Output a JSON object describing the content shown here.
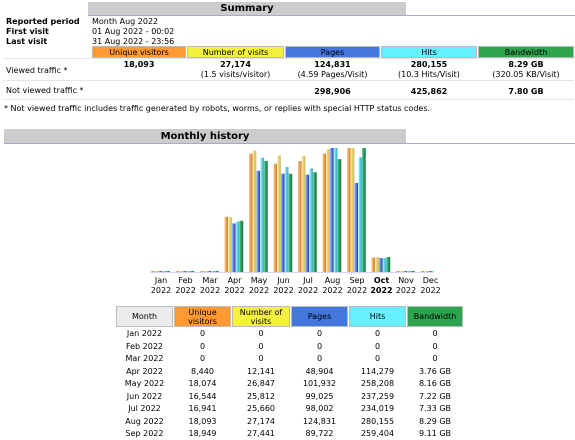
{
  "summary": {
    "title": "Summary",
    "reported_period_label": "Reported period",
    "reported_period": "Month Aug 2022",
    "first_visit_label": "First visit",
    "first_visit": "01 Aug 2022 - 00:02",
    "last_visit_label": "Last visit",
    "last_visit": "31 Aug 2022 - 23:56",
    "headers": [
      "Unique visitors",
      "Number of visits",
      "Pages",
      "Hits",
      "Bandwidth"
    ],
    "viewed_label": "Viewed traffic *",
    "viewed": {
      "unique": "18,093",
      "visits": "27,174",
      "visits_sub": "(1.5 visits/visitor)",
      "pages": "124,831",
      "pages_sub": "(4.59 Pages/Visit)",
      "hits": "280,155",
      "hits_sub": "(10.3 Hits/Visit)",
      "bandwidth": "8.29 GB",
      "bandwidth_sub": "(320.05 KB/Visit)"
    },
    "not_viewed_label": "Not viewed traffic *",
    "not_viewed": {
      "pages": "298,906",
      "hits": "425,862",
      "bandwidth": "7.80 GB"
    },
    "footnote": "* Not viewed traffic includes traffic generated by robots, worms, or replies with special HTTP status codes."
  },
  "history": {
    "title": "Monthly history",
    "table_headers": [
      "Month",
      "Unique visitors",
      "Number of visits",
      "Pages",
      "Hits",
      "Bandwidth"
    ],
    "rows": [
      [
        "Jan 2022",
        "0",
        "0",
        "0",
        "0",
        "0"
      ],
      [
        "Feb 2022",
        "0",
        "0",
        "0",
        "0",
        "0"
      ],
      [
        "Mar 2022",
        "0",
        "0",
        "0",
        "0",
        "0"
      ],
      [
        "Apr 2022",
        "8,440",
        "12,141",
        "48,904",
        "114,279",
        "3.76 GB"
      ],
      [
        "May 2022",
        "18,074",
        "26,847",
        "101,932",
        "258,208",
        "8.16 GB"
      ],
      [
        "Jun 2022",
        "16,544",
        "25,812",
        "99,025",
        "237,259",
        "7.22 GB"
      ],
      [
        "Jul 2022",
        "16,941",
        "25,660",
        "98,002",
        "234,019",
        "7.33 GB"
      ],
      [
        "Aug 2022",
        "18,093",
        "27,174",
        "124,831",
        "280,155",
        "8.29 GB"
      ],
      [
        "Sep 2022",
        "18,949",
        "27,441",
        "89,722",
        "259,404",
        "9.11 GB"
      ]
    ]
  },
  "colors": {
    "unique": "#ff9933",
    "visits": "#f4f040",
    "pages": "#4477dd",
    "hits": "#66f0ff",
    "bandwidth": "#2ea44f",
    "title_bg": "#cccccc"
  },
  "chart_data": {
    "type": "bar",
    "categories": [
      "Jan 2022",
      "Feb 2022",
      "Mar 2022",
      "Apr 2022",
      "May 2022",
      "Jun 2022",
      "Jul 2022",
      "Aug 2022",
      "Sep 2022",
      "Oct 2022",
      "Nov 2022",
      "Dec 2022"
    ],
    "x_top": [
      "Jan",
      "Feb",
      "Mar",
      "Apr",
      "May",
      "Jun",
      "Jul",
      "Aug",
      "Sep",
      "Oct",
      "Nov",
      "Dec"
    ],
    "x_bottom": [
      "2022",
      "2022",
      "2022",
      "2022",
      "2022",
      "2022",
      "2022",
      "2022",
      "2022",
      "2022",
      "2022",
      "2022"
    ],
    "highlight": "Oct 2022",
    "series": [
      {
        "key": "unique",
        "values": [
          0,
          0,
          0,
          8440,
          18074,
          16544,
          16941,
          18093,
          18949,
          2200,
          0,
          0
        ]
      },
      {
        "key": "visits",
        "values": [
          0,
          0,
          0,
          12141,
          26847,
          25812,
          25660,
          27174,
          27441,
          3300,
          0,
          0
        ]
      },
      {
        "key": "pages",
        "values": [
          0,
          0,
          0,
          48904,
          101932,
          99025,
          98002,
          124831,
          89722,
          14000,
          0,
          0
        ]
      },
      {
        "key": "hits",
        "values": [
          0,
          0,
          0,
          114279,
          258208,
          237259,
          234019,
          280155,
          259404,
          32000,
          0,
          0
        ]
      },
      {
        "key": "bandwidth",
        "values": [
          0,
          0,
          0,
          3.76,
          8.16,
          7.22,
          7.33,
          8.29,
          9.11,
          1.1,
          0,
          0
        ]
      }
    ]
  }
}
